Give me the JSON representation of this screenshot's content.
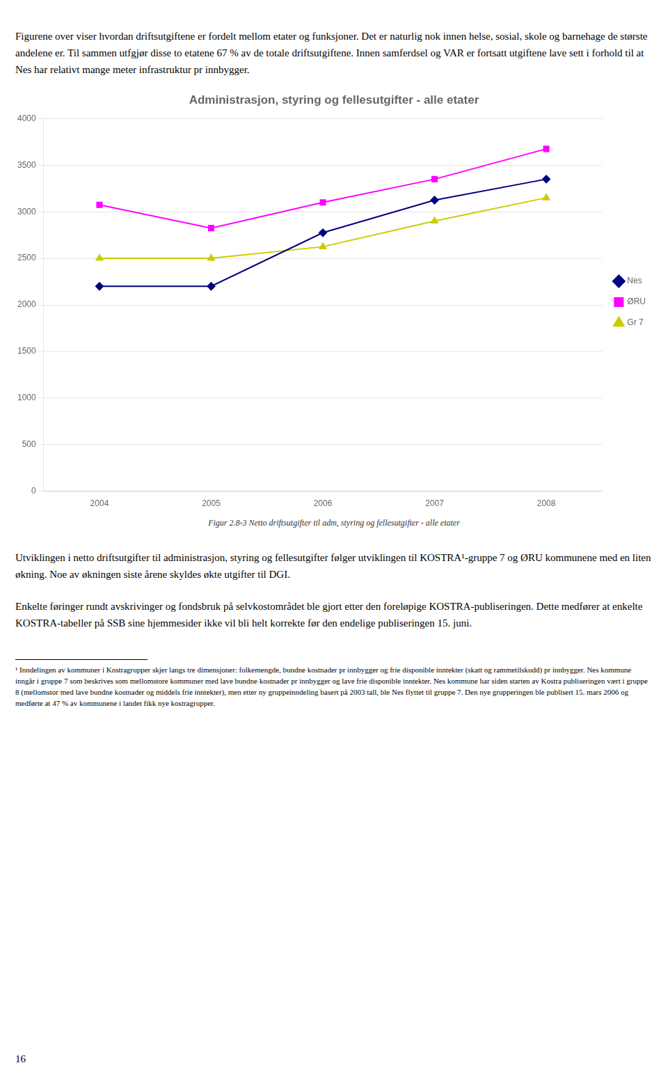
{
  "chart_data": {
    "type": "line",
    "title": "Administrasjon, styring og fellesutgifter - alle etater",
    "categories": [
      "2004",
      "2005",
      "2006",
      "2007",
      "2008"
    ],
    "series": [
      {
        "name": "Nes",
        "color": "#000080",
        "marker": "diamond",
        "values": [
          2200,
          2200,
          2775,
          3125,
          3350
        ]
      },
      {
        "name": "ØRU",
        "color": "#FF00FF",
        "marker": "square",
        "values": [
          3075,
          2825,
          3100,
          3350,
          3675
        ]
      },
      {
        "name": "Gr 7",
        "color": "#CCCC00",
        "marker": "triangle",
        "values": [
          2500,
          2500,
          2625,
          2900,
          3150
        ]
      }
    ],
    "ylim": [
      0,
      4000
    ],
    "yticks": [
      0,
      500,
      1000,
      1500,
      2000,
      2500,
      3000,
      3500,
      4000
    ],
    "grid": true,
    "legend": "right",
    "annotations": [
      "Figurene over viser hvordan driftsutgiftene er fordelt mellom etater og funksjoner. Det er naturlig nok innen helse, sosial, skole og barnehage de største andelene er. Til sammen utfgjør disse to etatene 67 % av de totale driftsutgiftene. Innen samferdsel og VAR er fortsatt utgiftene lave sett i forhold til at Nes har relativt mange meter infrastruktur pr innbygger.",
      "Figur 2.8-3 Netto driftsutgifter til adm, styring og fellesutgifter - alle etater",
      "Utviklingen i netto driftsutgifter til administrasjon, styring og fellesutgifter følger utviklingen til KOSTRA¹-gruppe 7 og ØRU kommunene med en liten økning. Noe av økningen siste årene skyldes økte utgifter til DGI.",
      "Enkelte føringer rundt avskrivinger og fondsbruk på selvkostområdet ble gjort etter den foreløpige KOSTRA-publiseringen. Dette medfører at enkelte KOSTRA-tabeller på SSB sine hjemmesider ikke vil bli helt korrekte før den endelige publiseringen 15. juni.",
      "¹ Inndelingen av kommuner i Kostragrupper skjer langs tre dimensjoner: folkemengde, bundne kostnader pr innbygger og frie disponible inntekter (skatt og rammetilskudd) pr innbygger. Nes kommune inngår i gruppe 7 som beskrives som mellomstore kommuner med lave bundne kostnader pr innbygger og lave frie disponible inntekter. Nes kommune har siden starten av Kostra publiseringen vært i gruppe 8 (mellomstor med lave bundne kostnader og middels frie inntekter), men etter ny gruppeinndeling basert på 2003 tall, ble Nes flyttet til gruppe 7. Den nye grupperingen ble publisert 15. mars 2006 og medførte at 47 % av kommunene i landet fikk nye kostragrupper.",
      "16"
    ]
  }
}
